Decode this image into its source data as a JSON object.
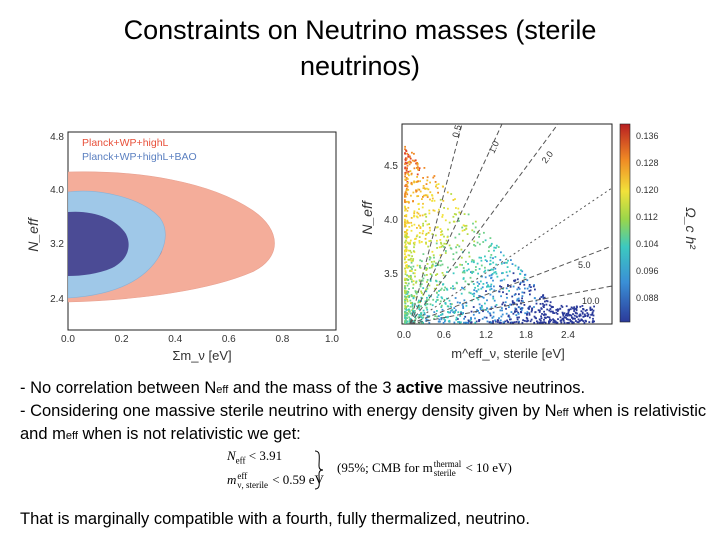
{
  "slide": {
    "title_line1": "Constraints on Neutrino masses (sterile",
    "title_line2": "neutrinos)",
    "bullet1_prefix": "-   No correlation between N",
    "bullet1_sub": "eff",
    "bullet1_mid": " and the mass of the 3 ",
    "bullet1_bold": "active",
    "bullet1_suffix": " massive neutrinos.",
    "bullet2_prefix": "-   Considering one massive sterile neutrino with energy density given by N",
    "bullet2_sub": "eff",
    "bullet2_mid": " when is relativistic and m",
    "bullet2_sub2": "eff",
    "bullet2_suffix": "  when is not relativistic we get:",
    "closing": "That is marginally compatible with a fourth, fully thermalized, neutrino."
  },
  "formula": {
    "line1_lhs": "N",
    "line1_sub": "eff",
    "line1_rhs": " < 3.91",
    "line2_lhs": "m",
    "line2_sup": "eff",
    "line2_sub": "ν, sterile",
    "line2_rhs": " < 0.59 eV",
    "note_prefix": "(95%; CMB for m",
    "note_sup": "thermal",
    "note_sub": "sterile",
    "note_suffix": " < 10 eV)"
  },
  "chart_data": [
    {
      "type": "area",
      "xlabel": "Σm_ν [eV]",
      "ylabel": "N_eff",
      "xlim": [
        0.0,
        1.0
      ],
      "ylim": [
        2.2,
        4.9
      ],
      "x_ticks": [
        "0.0",
        "0.2",
        "0.4",
        "0.6",
        "0.8",
        "1.0"
      ],
      "y_ticks": [
        "2.4",
        "3.2",
        "4.0",
        "4.8"
      ],
      "legend": [
        "Planck+WP+highL",
        "Planck+WP+highL+BAO"
      ],
      "legend_colors": [
        "#e8503a",
        "#5a7fc0"
      ],
      "legend_placement": "top-left"
    },
    {
      "type": "scatter",
      "xlabel": "m^eff_ν, sterile [eV]",
      "ylabel": "N_eff",
      "xlim": [
        0.0,
        3.0
      ],
      "ylim": [
        3.05,
        4.85
      ],
      "x_ticks": [
        "0.0",
        "0.6",
        "1.2",
        "1.8",
        "2.4"
      ],
      "y_ticks": [
        "3.5",
        "4.0",
        "4.5"
      ],
      "line_labels": [
        "0.5",
        "1.0",
        "2.0",
        "5.0",
        "10.0"
      ],
      "colorbar_label": "Ω_c h²",
      "colorbar_ticks": [
        "0.136",
        "0.128",
        "0.120",
        "0.112",
        "0.104",
        "0.096",
        "0.088"
      ]
    }
  ]
}
